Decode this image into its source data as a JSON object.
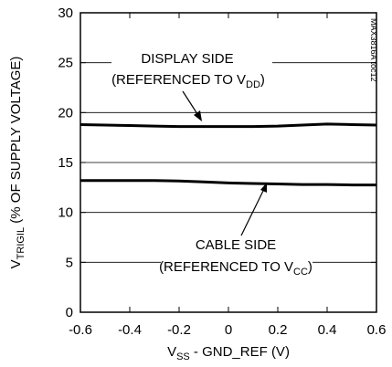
{
  "chart_data": {
    "type": "line",
    "code": "MAX3816A toc12",
    "xlabel": {
      "main": "V",
      "sub": "SS",
      "rest": " - GND_REF (V)"
    },
    "ylabel": {
      "main": "V",
      "sub": "TRIGIL",
      "rest": " (% OF SUPPLY VOLTAGE)"
    },
    "xlim": [
      -0.6,
      0.6
    ],
    "ylim": [
      0,
      30
    ],
    "x_ticks": [
      "-0.6",
      "-0.4",
      "-0.2",
      "0",
      "0.2",
      "0.4",
      "0.6"
    ],
    "x_tick_values": [
      -0.6,
      -0.4,
      -0.2,
      0,
      0.2,
      0.4,
      0.6
    ],
    "y_ticks": [
      "0",
      "5",
      "10",
      "15",
      "20",
      "25",
      "30"
    ],
    "y_tick_values": [
      0,
      5,
      10,
      15,
      20,
      25,
      30
    ],
    "grid_x": false,
    "grid_y": true,
    "series": [
      {
        "x": [
          -0.6,
          -0.5,
          -0.4,
          -0.3,
          -0.2,
          -0.1,
          0,
          0.1,
          0.2,
          0.3,
          0.4,
          0.5,
          0.6
        ],
        "values": [
          18.8,
          18.75,
          18.7,
          18.65,
          18.6,
          18.6,
          18.6,
          18.6,
          18.65,
          18.75,
          18.85,
          18.8,
          18.75
        ]
      },
      {
        "x": [
          -0.6,
          -0.5,
          -0.4,
          -0.3,
          -0.2,
          -0.1,
          0,
          0.1,
          0.2,
          0.3,
          0.4,
          0.5,
          0.6
        ],
        "values": [
          13.2,
          13.2,
          13.2,
          13.2,
          13.15,
          13.05,
          12.95,
          12.9,
          12.85,
          12.8,
          12.8,
          12.75,
          12.75
        ]
      }
    ],
    "annotations": [
      {
        "line1": "DISPLAY SIDE",
        "line2_pre": "(REFERENCED TO V",
        "line2_sub": "DD",
        "line2_post": ")"
      },
      {
        "line1": "CABLE SIDE",
        "line2_pre": "(REFERENCED TO V",
        "line2_sub": "CC",
        "line2_post": ")"
      }
    ]
  }
}
